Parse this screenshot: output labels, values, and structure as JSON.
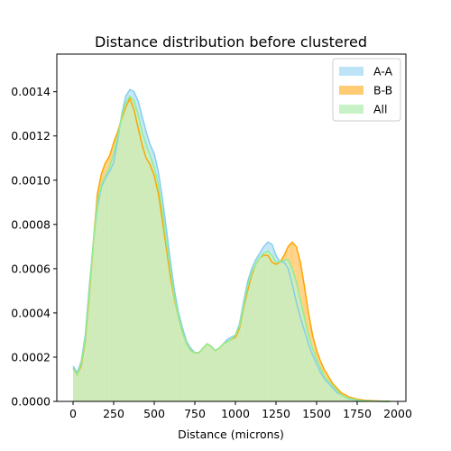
{
  "chart_data": {
    "type": "histogram",
    "title": "Distance distribution before clustered",
    "xlabel": "Distance (microns)",
    "ylabel": "",
    "xlim": [
      -100,
      2050
    ],
    "ylim": [
      0,
      0.00157
    ],
    "x_ticks": [
      0,
      250,
      500,
      750,
      1000,
      1250,
      1500,
      1750,
      2000
    ],
    "x_tick_labels": [
      "0",
      "250",
      "500",
      "750",
      "1000",
      "1250",
      "1500",
      "1750",
      "2000"
    ],
    "y_ticks": [
      0,
      0.0002,
      0.0004,
      0.0006,
      0.0008,
      0.001,
      0.0012,
      0.0014
    ],
    "y_tick_labels": [
      "0.0000",
      "0.0002",
      "0.0004",
      "0.0006",
      "0.0008",
      "0.0010",
      "0.0012",
      "0.0014"
    ],
    "legend_position": "top-right",
    "grid": false,
    "series": [
      {
        "name": "A-A",
        "color": "#87CEEB",
        "hist_color": "#BDE3F7",
        "kde": [
          [
            0,
            0.00016
          ],
          [
            25,
            0.00013
          ],
          [
            50,
            0.00018
          ],
          [
            75,
            0.0003
          ],
          [
            100,
            0.00052
          ],
          [
            125,
            0.00072
          ],
          [
            150,
            0.00088
          ],
          [
            175,
            0.00097
          ],
          [
            200,
            0.00101
          ],
          [
            225,
            0.00104
          ],
          [
            250,
            0.00108
          ],
          [
            275,
            0.00118
          ],
          [
            300,
            0.0013
          ],
          [
            325,
            0.00138
          ],
          [
            350,
            0.00141
          ],
          [
            375,
            0.0014
          ],
          [
            400,
            0.00136
          ],
          [
            425,
            0.00129
          ],
          [
            450,
            0.00122
          ],
          [
            475,
            0.00116
          ],
          [
            500,
            0.00112
          ],
          [
            525,
            0.00104
          ],
          [
            550,
            0.00092
          ],
          [
            575,
            0.00078
          ],
          [
            600,
            0.00063
          ],
          [
            625,
            0.0005
          ],
          [
            650,
            0.0004
          ],
          [
            675,
            0.00033
          ],
          [
            700,
            0.00027
          ],
          [
            725,
            0.00024
          ],
          [
            750,
            0.00022
          ],
          [
            775,
            0.00022
          ],
          [
            800,
            0.00024
          ],
          [
            825,
            0.00026
          ],
          [
            850,
            0.00025
          ],
          [
            875,
            0.00023
          ],
          [
            900,
            0.00024
          ],
          [
            925,
            0.00026
          ],
          [
            950,
            0.00028
          ],
          [
            975,
            0.00029
          ],
          [
            1000,
            0.0003
          ],
          [
            1025,
            0.00035
          ],
          [
            1050,
            0.00045
          ],
          [
            1075,
            0.00054
          ],
          [
            1100,
            0.0006
          ],
          [
            1125,
            0.00064
          ],
          [
            1150,
            0.00067
          ],
          [
            1175,
            0.0007
          ],
          [
            1200,
            0.00072
          ],
          [
            1225,
            0.00071
          ],
          [
            1250,
            0.00066
          ],
          [
            1275,
            0.00063
          ],
          [
            1300,
            0.00063
          ],
          [
            1325,
            0.0006
          ],
          [
            1350,
            0.00053
          ],
          [
            1375,
            0.00045
          ],
          [
            1400,
            0.00038
          ],
          [
            1425,
            0.00032
          ],
          [
            1450,
            0.00026
          ],
          [
            1475,
            0.00021
          ],
          [
            1500,
            0.00017
          ],
          [
            1525,
            0.00013
          ],
          [
            1550,
            0.0001
          ],
          [
            1575,
            8e-05
          ],
          [
            1600,
            6e-05
          ],
          [
            1625,
            4e-05
          ],
          [
            1650,
            3e-05
          ],
          [
            1675,
            2e-05
          ],
          [
            1700,
            1.2e-05
          ],
          [
            1725,
            8e-06
          ],
          [
            1750,
            5e-06
          ],
          [
            1800,
            2e-06
          ],
          [
            1850,
            1e-06
          ],
          [
            1900,
            5e-07
          ],
          [
            1950,
            0
          ]
        ]
      },
      {
        "name": "B-B",
        "color": "#FFA500",
        "hist_color": "#FFCB73",
        "kde": [
          [
            0,
            0.00015
          ],
          [
            25,
            0.00012
          ],
          [
            50,
            0.00016
          ],
          [
            75,
            0.00027
          ],
          [
            100,
            0.00048
          ],
          [
            125,
            0.00072
          ],
          [
            150,
            0.00094
          ],
          [
            175,
            0.00103
          ],
          [
            200,
            0.00108
          ],
          [
            225,
            0.00111
          ],
          [
            250,
            0.00117
          ],
          [
            275,
            0.00122
          ],
          [
            300,
            0.00128
          ],
          [
            325,
            0.00133
          ],
          [
            350,
            0.00137
          ],
          [
            375,
            0.00132
          ],
          [
            400,
            0.00124
          ],
          [
            425,
            0.00116
          ],
          [
            450,
            0.0011
          ],
          [
            475,
            0.00107
          ],
          [
            500,
            0.00102
          ],
          [
            525,
            0.00094
          ],
          [
            550,
            0.00082
          ],
          [
            575,
            0.00069
          ],
          [
            600,
            0.00056
          ],
          [
            625,
            0.00046
          ],
          [
            650,
            0.00038
          ],
          [
            675,
            0.00031
          ],
          [
            700,
            0.00026
          ],
          [
            725,
            0.00023
          ],
          [
            750,
            0.00022
          ],
          [
            775,
            0.00022
          ],
          [
            800,
            0.00024
          ],
          [
            825,
            0.00026
          ],
          [
            850,
            0.00025
          ],
          [
            875,
            0.00023
          ],
          [
            900,
            0.00024
          ],
          [
            925,
            0.00026
          ],
          [
            950,
            0.00027
          ],
          [
            975,
            0.00028
          ],
          [
            1000,
            0.00029
          ],
          [
            1025,
            0.00033
          ],
          [
            1050,
            0.00042
          ],
          [
            1075,
            0.0005
          ],
          [
            1100,
            0.00057
          ],
          [
            1125,
            0.00062
          ],
          [
            1150,
            0.00065
          ],
          [
            1175,
            0.00066
          ],
          [
            1200,
            0.00066
          ],
          [
            1225,
            0.00063
          ],
          [
            1250,
            0.00062
          ],
          [
            1275,
            0.00063
          ],
          [
            1300,
            0.00066
          ],
          [
            1325,
            0.0007
          ],
          [
            1350,
            0.00072
          ],
          [
            1375,
            0.0007
          ],
          [
            1400,
            0.00063
          ],
          [
            1425,
            0.00052
          ],
          [
            1450,
            0.0004
          ],
          [
            1475,
            0.0003
          ],
          [
            1500,
            0.00023
          ],
          [
            1525,
            0.00018
          ],
          [
            1550,
            0.00014
          ],
          [
            1575,
            0.00011
          ],
          [
            1600,
            8e-05
          ],
          [
            1625,
            6e-05
          ],
          [
            1650,
            4e-05
          ],
          [
            1675,
            3e-05
          ],
          [
            1700,
            2e-05
          ],
          [
            1725,
            1.5e-05
          ],
          [
            1750,
            1e-05
          ],
          [
            1800,
            5e-06
          ],
          [
            1850,
            3e-06
          ],
          [
            1900,
            1e-06
          ],
          [
            1950,
            0
          ]
        ]
      },
      {
        "name": "All",
        "color": "#90EE90",
        "hist_color": "#C6F2C6",
        "kde": [
          [
            0,
            0.00015
          ],
          [
            25,
            0.00012
          ],
          [
            50,
            0.00017
          ],
          [
            75,
            0.00028
          ],
          [
            100,
            0.0005
          ],
          [
            125,
            0.00072
          ],
          [
            150,
            0.0009
          ],
          [
            175,
            0.00098
          ],
          [
            200,
            0.00102
          ],
          [
            225,
            0.00106
          ],
          [
            250,
            0.00112
          ],
          [
            275,
            0.0012
          ],
          [
            300,
            0.00129
          ],
          [
            325,
            0.00135
          ],
          [
            350,
            0.00138
          ],
          [
            375,
            0.00136
          ],
          [
            400,
            0.0013
          ],
          [
            425,
            0.00122
          ],
          [
            450,
            0.00116
          ],
          [
            475,
            0.00111
          ],
          [
            500,
            0.00106
          ],
          [
            525,
            0.00098
          ],
          [
            550,
            0.00086
          ],
          [
            575,
            0.00072
          ],
          [
            600,
            0.00059
          ],
          [
            625,
            0.00047
          ],
          [
            650,
            0.00038
          ],
          [
            675,
            0.00031
          ],
          [
            700,
            0.00026
          ],
          [
            725,
            0.00023
          ],
          [
            750,
            0.00022
          ],
          [
            775,
            0.00022
          ],
          [
            800,
            0.00024
          ],
          [
            825,
            0.00026
          ],
          [
            850,
            0.00025
          ],
          [
            875,
            0.00023
          ],
          [
            900,
            0.00024
          ],
          [
            925,
            0.00026
          ],
          [
            950,
            0.00027
          ],
          [
            975,
            0.00028
          ],
          [
            1000,
            0.0003
          ],
          [
            1025,
            0.00034
          ],
          [
            1050,
            0.00043
          ],
          [
            1075,
            0.00052
          ],
          [
            1100,
            0.00058
          ],
          [
            1125,
            0.00062
          ],
          [
            1150,
            0.00065
          ],
          [
            1175,
            0.00067
          ],
          [
            1200,
            0.00068
          ],
          [
            1225,
            0.00066
          ],
          [
            1250,
            0.00063
          ],
          [
            1275,
            0.00063
          ],
          [
            1300,
            0.00064
          ],
          [
            1325,
            0.00064
          ],
          [
            1350,
            0.0006
          ],
          [
            1375,
            0.00054
          ],
          [
            1400,
            0.00046
          ],
          [
            1425,
            0.00038
          ],
          [
            1450,
            0.0003
          ],
          [
            1475,
            0.00024
          ],
          [
            1500,
            0.00019
          ],
          [
            1525,
            0.00015
          ],
          [
            1550,
            0.00011
          ],
          [
            1575,
            9e-05
          ],
          [
            1600,
            7e-05
          ],
          [
            1625,
            5e-05
          ],
          [
            1650,
            3e-05
          ],
          [
            1675,
            2e-05
          ],
          [
            1700,
            1.5e-05
          ],
          [
            1725,
            1e-05
          ],
          [
            1750,
            6e-06
          ],
          [
            1800,
            3e-06
          ],
          [
            1850,
            1e-06
          ],
          [
            1900,
            5e-07
          ],
          [
            1950,
            0
          ]
        ]
      }
    ]
  }
}
